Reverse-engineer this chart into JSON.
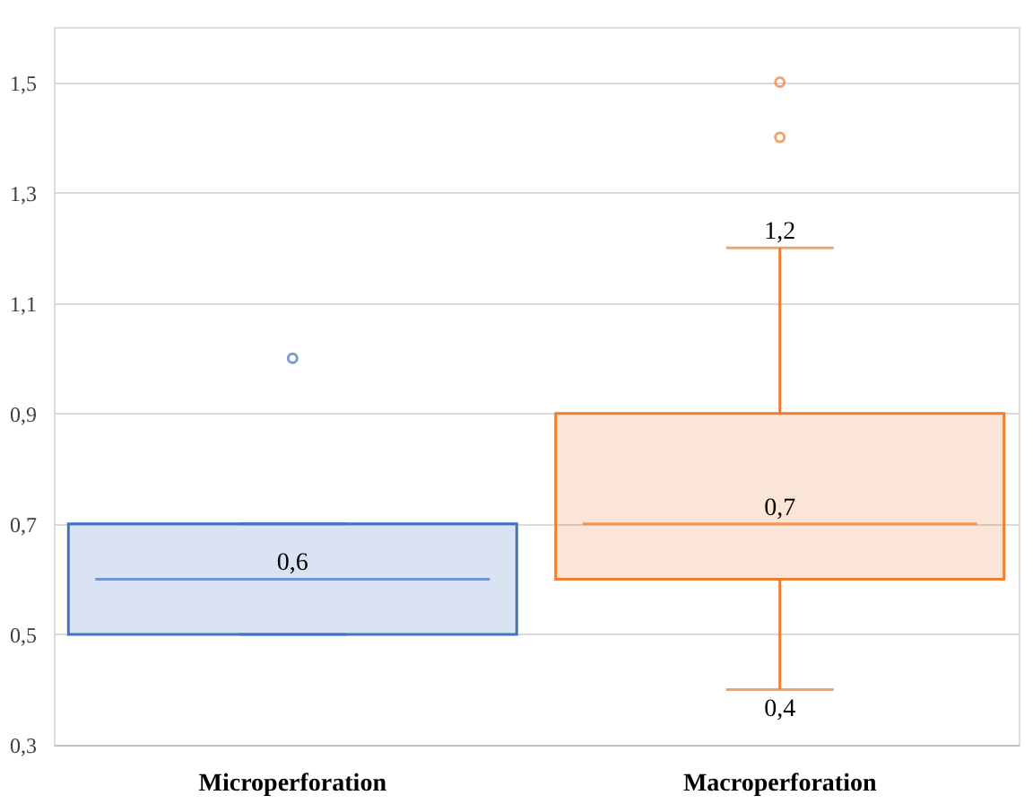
{
  "chart_data": {
    "type": "box",
    "categories": [
      "Microperforation",
      "Macroperforation"
    ],
    "colors": [
      "#4472c4",
      "#ed7d31"
    ],
    "boxes": [
      {
        "low": 0.5,
        "q1": 0.5,
        "median": 0.6,
        "q3": 0.7,
        "high": 0.7,
        "outliers": [
          1.0
        ]
      },
      {
        "low": 0.4,
        "q1": 0.6,
        "median": 0.7,
        "q3": 0.9,
        "high": 1.2,
        "outliers": [
          1.4,
          1.5
        ]
      }
    ],
    "ylim": [
      0.3,
      1.6
    ],
    "yticks": [
      {
        "value": 0.3,
        "label": "0,3"
      },
      {
        "value": 0.5,
        "label": "0,5"
      },
      {
        "value": 0.7,
        "label": "0,7"
      },
      {
        "value": 0.9,
        "label": "0,9"
      },
      {
        "value": 1.1,
        "label": "1,1"
      },
      {
        "value": 1.3,
        "label": "1,3"
      },
      {
        "value": 1.5,
        "label": "1,5"
      }
    ],
    "grid": "y",
    "annotations": [
      {
        "text": "0,6",
        "x": "Microperforation",
        "y": 0.6
      },
      {
        "text": "0,7",
        "x": "Macroperforation",
        "y": 0.7
      },
      {
        "text": "1,2",
        "x": "Macroperforation",
        "y": 1.2
      },
      {
        "text": "0,4",
        "x": "Macroperforation",
        "y": 0.4
      }
    ]
  }
}
